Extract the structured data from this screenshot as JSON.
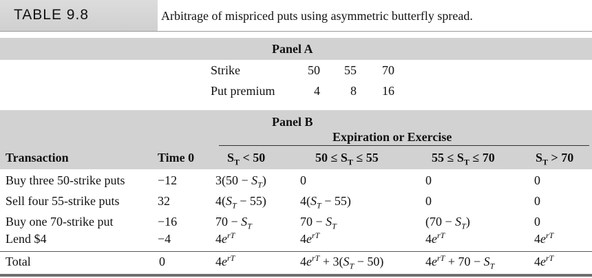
{
  "table_label": "TABLE 9.8",
  "table_title": "Arbitrage of mispriced puts using asymmetric butterfly spread.",
  "panel_a": {
    "heading": "Panel A",
    "rows": [
      {
        "label": "Strike",
        "values": [
          "50",
          "55",
          "70"
        ]
      },
      {
        "label": "Put premium",
        "values": [
          "4",
          "8",
          "16"
        ]
      }
    ]
  },
  "panel_b": {
    "heading": "Panel B",
    "group_heading": "Expiration or Exercise",
    "col_transaction": "Transaction",
    "col_time0": "Time 0",
    "col_headers": [
      [
        "S",
        "T",
        " < 50"
      ],
      [
        "50 ≤ S",
        "T",
        " ≤ 55"
      ],
      [
        "55 ≤ S",
        "T",
        " ≤ 70"
      ],
      [
        "S",
        "T",
        " > 70"
      ]
    ],
    "rows": [
      {
        "transaction": "Buy three 50-strike puts",
        "time0": "−12",
        "cells": [
          [
            "3(50 − ",
            "S",
            "T",
            ")"
          ],
          [
            "0"
          ],
          [
            "0"
          ],
          [
            "0"
          ]
        ]
      },
      {
        "transaction": "Sell four 55-strike puts",
        "time0": "32",
        "cells": [
          [
            "4(",
            "S",
            "T",
            " − 55)"
          ],
          [
            "4(",
            "S",
            "T",
            " − 55)"
          ],
          [
            "0"
          ],
          [
            "0"
          ]
        ]
      },
      {
        "transaction": "Buy one 70-strike put",
        "time0": "−16",
        "cells": [
          [
            "70 − ",
            "S",
            "T",
            ""
          ],
          [
            "70 − ",
            "S",
            "T",
            ""
          ],
          [
            "(70 − ",
            "S",
            "T",
            ")"
          ],
          [
            "0"
          ]
        ]
      },
      {
        "transaction": "Lend $4",
        "time0": "−4",
        "cells": [
          [
            "4e^rT"
          ],
          [
            "4e^rT"
          ],
          [
            "4e^rT"
          ],
          [
            "4e^rT"
          ]
        ]
      }
    ],
    "total": {
      "label": "Total",
      "time0": "0",
      "cells": [
        "4e^rT",
        "4e^rT + 3(S_T − 50)",
        "4e^rT + 70 − S_T",
        "4e^rT"
      ]
    }
  }
}
